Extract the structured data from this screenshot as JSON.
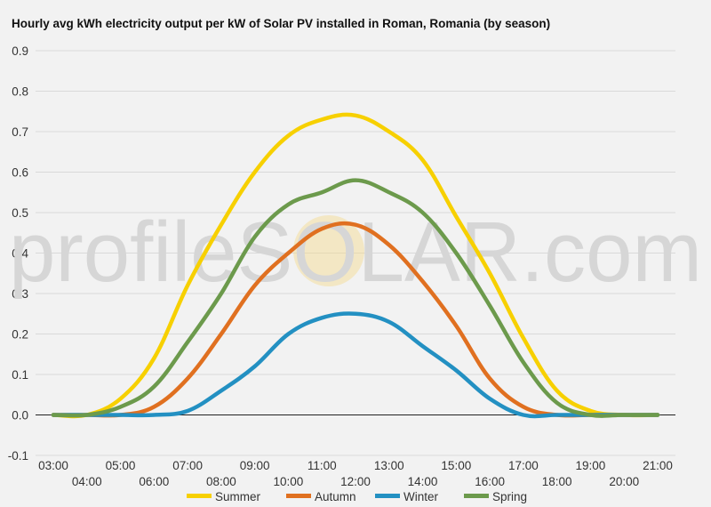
{
  "chart_data": {
    "type": "line",
    "title": "Hourly avg kWh electricity output per kW of Solar PV installed in Roman, Romania (by season)",
    "xlabel": "",
    "ylabel": "",
    "categories": [
      "03:00",
      "04:00",
      "05:00",
      "06:00",
      "07:00",
      "08:00",
      "09:00",
      "10:00",
      "11:00",
      "12:00",
      "13:00",
      "14:00",
      "15:00",
      "16:00",
      "17:00",
      "18:00",
      "19:00",
      "20:00",
      "21:00"
    ],
    "ylim": [
      -0.1,
      0.9
    ],
    "yticks": [
      "-0.1",
      "0.0",
      "0.1",
      "0.2",
      "0.3",
      "0.4",
      "0.5",
      "0.6",
      "0.7",
      "0.8",
      "0.9"
    ],
    "grid": true,
    "legend_position": "bottom",
    "series": [
      {
        "name": "Summer",
        "color": "#f7d000",
        "values": [
          0.0,
          0.0,
          0.04,
          0.14,
          0.32,
          0.47,
          0.6,
          0.69,
          0.73,
          0.74,
          0.7,
          0.63,
          0.49,
          0.35,
          0.19,
          0.06,
          0.01,
          0.0,
          0.0
        ]
      },
      {
        "name": "Autumn",
        "color": "#e07020",
        "values": [
          0.0,
          0.0,
          0.0,
          0.02,
          0.09,
          0.2,
          0.32,
          0.4,
          0.46,
          0.47,
          0.42,
          0.33,
          0.22,
          0.09,
          0.02,
          0.0,
          0.0,
          0.0,
          0.0
        ]
      },
      {
        "name": "Winter",
        "color": "#2390c2",
        "values": [
          0.0,
          0.0,
          0.0,
          0.0,
          0.01,
          0.06,
          0.12,
          0.2,
          0.24,
          0.25,
          0.23,
          0.17,
          0.11,
          0.04,
          0.0,
          0.0,
          0.0,
          0.0,
          0.0
        ]
      },
      {
        "name": "Spring",
        "color": "#6c9a4c",
        "values": [
          0.0,
          0.0,
          0.02,
          0.07,
          0.18,
          0.3,
          0.44,
          0.52,
          0.55,
          0.58,
          0.55,
          0.5,
          0.4,
          0.27,
          0.13,
          0.03,
          0.0,
          0.0,
          0.0
        ]
      }
    ]
  },
  "watermark": {
    "text": "profileSOLAR.com"
  }
}
